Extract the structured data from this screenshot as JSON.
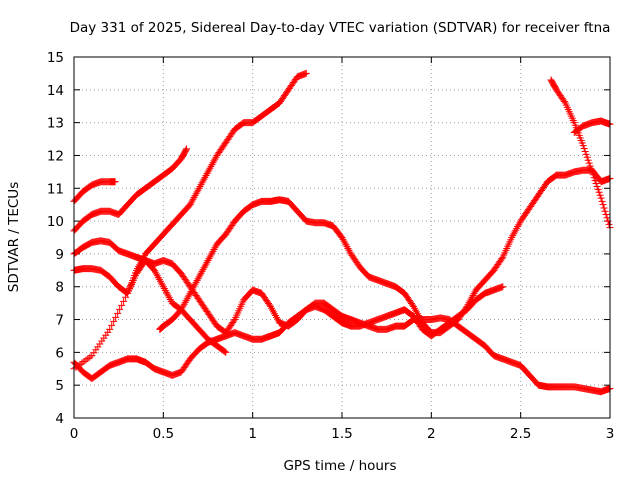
{
  "chart_data": {
    "type": "scatter",
    "title": "Day 331 of 2025, Sidereal Day-to-day VTEC variation (SDTVAR) for receiver ftna",
    "xlabel": "GPS time / hours",
    "ylabel": "SDTVAR / TECUs",
    "xlim": [
      0,
      3
    ],
    "ylim": [
      4,
      15
    ],
    "xticks": [
      0,
      0.5,
      1,
      1.5,
      2,
      2.5,
      3
    ],
    "yticks": [
      4,
      5,
      6,
      7,
      8,
      9,
      10,
      11,
      12,
      13,
      14,
      15
    ],
    "xtick_labels": [
      "0",
      "0.5",
      "1",
      "1.5",
      "2",
      "2.5",
      "3"
    ],
    "ytick_labels": [
      "4",
      "5",
      "6",
      "7",
      "8",
      "9",
      "10",
      "11",
      "12",
      "13",
      "14",
      "15"
    ],
    "grid": true,
    "marker": "+",
    "color": "#ff0000",
    "series": [
      {
        "name": "s1",
        "x": [
          0,
          0.1,
          0.2,
          0.3,
          0.35,
          0.4,
          0.45,
          0.5,
          0.55,
          0.6,
          0.65,
          0.7,
          0.75,
          0.8,
          0.85,
          0.9,
          0.95,
          1.0,
          1.05,
          1.1,
          1.15,
          1.2,
          1.25,
          1.3
        ],
        "y": [
          5.5,
          5.9,
          6.7,
          7.8,
          8.5,
          9.0,
          9.3,
          9.6,
          9.9,
          10.2,
          10.5,
          11.0,
          11.5,
          12.0,
          12.4,
          12.8,
          13.0,
          13.0,
          13.2,
          13.4,
          13.6,
          14.0,
          14.4,
          14.5
        ]
      },
      {
        "name": "s2",
        "x": [
          0,
          0.05,
          0.1,
          0.15,
          0.2,
          0.25,
          0.3,
          0.35,
          0.4,
          0.45,
          0.5,
          0.55,
          0.6,
          0.63
        ],
        "y": [
          9.7,
          10.0,
          10.2,
          10.3,
          10.3,
          10.2,
          10.5,
          10.8,
          11.0,
          11.2,
          11.4,
          11.6,
          11.9,
          12.2
        ]
      },
      {
        "name": "s3",
        "x": [
          0,
          0.05,
          0.1,
          0.15,
          0.2,
          0.23
        ],
        "y": [
          10.6,
          10.9,
          11.1,
          11.2,
          11.2,
          11.2
        ]
      },
      {
        "name": "s4",
        "x": [
          0,
          0.05,
          0.1,
          0.15,
          0.2,
          0.25,
          0.3,
          0.35,
          0.4,
          0.45,
          0.5,
          0.55,
          0.6,
          0.65,
          0.7,
          0.75,
          0.8,
          0.85
        ],
        "y": [
          8.5,
          8.55,
          8.55,
          8.5,
          8.3,
          8.0,
          7.8,
          8.4,
          8.8,
          8.5,
          8.0,
          7.5,
          7.3,
          7.0,
          6.7,
          6.4,
          6.2,
          6.0
        ]
      },
      {
        "name": "s5",
        "x": [
          0,
          0.05,
          0.1,
          0.15,
          0.2,
          0.25,
          0.3,
          0.35,
          0.4,
          0.45,
          0.5,
          0.55,
          0.6,
          0.65,
          0.7,
          0.75,
          0.8,
          0.85,
          0.9,
          0.95,
          1.0,
          1.05,
          1.1,
          1.15,
          1.2,
          1.25,
          1.3,
          1.35,
          1.4,
          1.45,
          1.5,
          1.55,
          1.6,
          1.65,
          1.7,
          1.75,
          1.8,
          1.85,
          1.9,
          1.95,
          2.0,
          2.05,
          2.1,
          2.15,
          2.2,
          2.25,
          2.3,
          2.35,
          2.4
        ],
        "y": [
          9.0,
          9.2,
          9.35,
          9.4,
          9.35,
          9.1,
          9.0,
          8.9,
          8.8,
          8.7,
          8.8,
          8.7,
          8.4,
          8.0,
          7.6,
          7.2,
          6.8,
          6.6,
          7.0,
          7.6,
          7.9,
          7.8,
          7.4,
          6.9,
          6.8,
          7.0,
          7.3,
          7.4,
          7.3,
          7.1,
          6.9,
          6.8,
          6.8,
          6.9,
          7.0,
          7.1,
          7.2,
          7.3,
          7.1,
          6.7,
          6.5,
          6.7,
          6.9,
          7.1,
          7.3,
          7.6,
          7.8,
          7.9,
          8.0
        ]
      },
      {
        "name": "s6",
        "x": [
          0,
          0.05,
          0.1,
          0.15,
          0.2,
          0.25,
          0.3,
          0.35,
          0.4,
          0.45,
          0.5,
          0.55,
          0.6,
          0.65,
          0.7,
          0.75,
          0.8,
          0.85,
          0.9,
          0.95,
          1.0,
          1.05,
          1.1,
          1.15,
          1.2,
          1.25,
          1.3,
          1.35,
          1.4,
          1.45,
          1.5,
          1.55,
          1.6,
          1.65,
          1.7,
          1.75,
          1.8,
          1.85,
          1.9,
          1.95,
          2.0,
          2.05,
          2.1,
          2.15,
          2.2,
          2.25,
          2.3,
          2.35,
          2.4,
          2.45,
          2.5,
          2.55,
          2.6,
          2.65,
          2.7,
          2.75,
          2.8,
          2.85,
          2.9,
          2.95,
          3.0
        ],
        "y": [
          5.7,
          5.4,
          5.2,
          5.4,
          5.6,
          5.7,
          5.8,
          5.8,
          5.7,
          5.5,
          5.4,
          5.3,
          5.4,
          5.8,
          6.1,
          6.3,
          6.4,
          6.5,
          6.6,
          6.5,
          6.4,
          6.4,
          6.5,
          6.6,
          6.9,
          7.1,
          7.3,
          7.5,
          7.5,
          7.3,
          7.1,
          7.0,
          6.9,
          6.8,
          6.7,
          6.7,
          6.8,
          6.8,
          7.0,
          7.0,
          7.0,
          7.05,
          7.0,
          6.8,
          6.6,
          6.4,
          6.2,
          5.9,
          5.8,
          5.7,
          5.6,
          5.3,
          5.0,
          4.95,
          4.95,
          4.95,
          4.95,
          4.9,
          4.85,
          4.8,
          4.9
        ]
      },
      {
        "name": "s7",
        "x": [
          0.48,
          0.5,
          0.55,
          0.6,
          0.65,
          0.7,
          0.75,
          0.8,
          0.85,
          0.9,
          0.95,
          1.0,
          1.05,
          1.1,
          1.15,
          1.2,
          1.25,
          1.3,
          1.35,
          1.4,
          1.45,
          1.5,
          1.55,
          1.6,
          1.65,
          1.7,
          1.75,
          1.8,
          1.85,
          1.9,
          1.95,
          2.0,
          2.05,
          2.1,
          2.15,
          2.2,
          2.25,
          2.3,
          2.35,
          2.4,
          2.45,
          2.5,
          2.55,
          2.6,
          2.65,
          2.7,
          2.75,
          2.8,
          2.85,
          2.9,
          2.95,
          3.0
        ],
        "y": [
          6.7,
          6.8,
          7.0,
          7.3,
          7.8,
          8.3,
          8.8,
          9.3,
          9.6,
          10.0,
          10.3,
          10.5,
          10.6,
          10.6,
          10.65,
          10.6,
          10.3,
          10.0,
          9.95,
          9.95,
          9.85,
          9.5,
          9.0,
          8.6,
          8.3,
          8.2,
          8.1,
          8.0,
          7.8,
          7.4,
          6.9,
          6.6,
          6.6,
          6.8,
          7.0,
          7.4,
          7.9,
          8.2,
          8.5,
          8.9,
          9.5,
          10.0,
          10.4,
          10.8,
          11.2,
          11.4,
          11.4,
          11.5,
          11.55,
          11.55,
          11.2,
          11.3
        ]
      },
      {
        "name": "s8",
        "x": [
          2.67,
          2.7,
          2.75,
          2.8,
          2.85,
          2.9,
          2.95,
          3.0
        ],
        "y": [
          14.3,
          14.0,
          13.6,
          13.0,
          12.3,
          11.5,
          10.7,
          9.8
        ]
      },
      {
        "name": "s9",
        "x": [
          2.8,
          2.85,
          2.9,
          2.95,
          3.0
        ],
        "y": [
          12.7,
          12.9,
          13.0,
          13.05,
          12.95
        ]
      }
    ]
  }
}
